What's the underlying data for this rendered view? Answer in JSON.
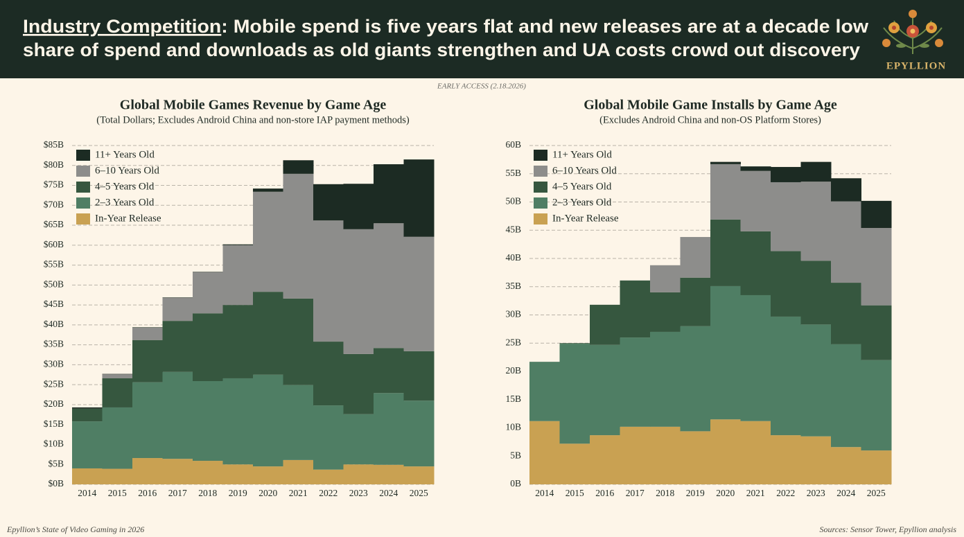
{
  "header": {
    "title_lead": "Industry Competition",
    "title_line1": ": Mobile spend is five years flat and new releases are at a decade low",
    "title_line2": "share of spend and downloads as old giants strengthen and UA costs crowd out discovery",
    "brand": "EPYLLION"
  },
  "note": "EARLY ACCESS (2.18.2026)",
  "footer": {
    "left": "Epyllion’s State of Video Gaming in 2026",
    "right": "Sources: Sensor Tower, Epyllion analysis"
  },
  "chart_data": [
    {
      "type": "stacked-step",
      "title": "Global Mobile Games Revenue by Game Age",
      "subtitle": "(Total Dollars; Excludes Android China and non-store IAP payment methods)",
      "categories": [
        "2014",
        "2015",
        "2016",
        "2017",
        "2018",
        "2019",
        "2020",
        "2021",
        "2022",
        "2023",
        "2024",
        "2025"
      ],
      "series": [
        {
          "name": "In-Year Release",
          "color": "#c9a152",
          "values": [
            4.0,
            3.9,
            6.6,
            6.4,
            5.9,
            5.0,
            4.5,
            6.1,
            3.7,
            5.0,
            4.9,
            4.5
          ]
        },
        {
          "name": "2–3 Years Old",
          "color": "#4f7e64",
          "values": [
            11.8,
            15.4,
            19.0,
            21.8,
            20.0,
            21.6,
            23.0,
            18.8,
            16.1,
            12.6,
            18.0,
            16.5
          ]
        },
        {
          "name": "4–5 Years Old",
          "color": "#36573f",
          "values": [
            3.2,
            7.3,
            10.6,
            12.8,
            17.0,
            18.4,
            20.8,
            21.7,
            16.0,
            15.1,
            11.3,
            12.4
          ]
        },
        {
          "name": "6–10 Years Old",
          "color": "#8d8d8b",
          "values": [
            0,
            1.0,
            3.1,
            5.8,
            10.3,
            15.0,
            25.1,
            31.3,
            30.4,
            31.3,
            31.3,
            28.7
          ]
        },
        {
          "name": "11+ Years Old",
          "color": "#1c2b23",
          "values": [
            0.3,
            0.1,
            0.1,
            0.1,
            0.1,
            0.2,
            0.8,
            3.4,
            9.1,
            11.4,
            14.8,
            19.4
          ]
        }
      ],
      "ylim": [
        0,
        85
      ],
      "yticks": [
        {
          "value": 0,
          "label": "$0B"
        },
        {
          "value": 5,
          "label": "$5B"
        },
        {
          "value": 10,
          "label": "$10B"
        },
        {
          "value": 15,
          "label": "$15B"
        },
        {
          "value": 20,
          "label": "$20B"
        },
        {
          "value": 25,
          "label": "$25B"
        },
        {
          "value": 30,
          "label": "$30B"
        },
        {
          "value": 35,
          "label": "$35B"
        },
        {
          "value": 40,
          "label": "$40B"
        },
        {
          "value": 45,
          "label": "$45B"
        },
        {
          "value": 50,
          "label": "$50B"
        },
        {
          "value": 55,
          "label": "$55B"
        },
        {
          "value": 60,
          "label": "$60B"
        },
        {
          "value": 65,
          "label": "$65B"
        },
        {
          "value": 70,
          "label": "$70B"
        },
        {
          "value": 75,
          "label": "$75B"
        },
        {
          "value": 80,
          "label": "$80B"
        },
        {
          "value": 85,
          "label": "$85B"
        }
      ],
      "grid": true,
      "legend": "top-left"
    },
    {
      "type": "stacked-step",
      "title": "Global Mobile Game Installs by Game Age",
      "subtitle": "(Excludes Android China and non-OS Platform Stores)",
      "categories": [
        "2014",
        "2015",
        "2016",
        "2017",
        "2018",
        "2019",
        "2020",
        "2021",
        "2022",
        "2023",
        "2024",
        "2025"
      ],
      "series": [
        {
          "name": "In-Year Release",
          "color": "#c9a152",
          "values": [
            11.2,
            7.2,
            8.7,
            10.2,
            10.2,
            9.4,
            11.5,
            11.2,
            8.7,
            8.5,
            6.6,
            6.0
          ]
        },
        {
          "name": "2–3 Years Old",
          "color": "#4f7e64",
          "values": [
            10.5,
            17.7,
            16.0,
            15.8,
            16.8,
            18.6,
            23.6,
            22.3,
            21.0,
            19.8,
            18.2,
            16.0
          ]
        },
        {
          "name": "4–5 Years Old",
          "color": "#36573f",
          "values": [
            0,
            0.1,
            7.1,
            10.1,
            7.0,
            8.6,
            11.8,
            11.3,
            11.6,
            11.3,
            10.9,
            9.7
          ]
        },
        {
          "name": "6–10 Years Old",
          "color": "#8d8d8b",
          "values": [
            0,
            0,
            0,
            0,
            4.8,
            7.2,
            9.8,
            10.7,
            12.2,
            14.0,
            14.4,
            13.7
          ]
        },
        {
          "name": "11+ Years Old",
          "color": "#1c2b23",
          "values": [
            0,
            0,
            0,
            0,
            0,
            0,
            0.4,
            0.8,
            2.7,
            3.5,
            4.1,
            4.8
          ]
        }
      ],
      "ylim": [
        0,
        60
      ],
      "yticks": [
        {
          "value": 0,
          "label": "0B"
        },
        {
          "value": 5,
          "label": "5B"
        },
        {
          "value": 10,
          "label": "10B"
        },
        {
          "value": 15,
          "label": "15B"
        },
        {
          "value": 20,
          "label": "20B"
        },
        {
          "value": 25,
          "label": "25B"
        },
        {
          "value": 30,
          "label": "30B"
        },
        {
          "value": 35,
          "label": "35B"
        },
        {
          "value": 40,
          "label": "40B"
        },
        {
          "value": 45,
          "label": "45B"
        },
        {
          "value": 50,
          "label": "50B"
        },
        {
          "value": 55,
          "label": "55B"
        },
        {
          "value": 60,
          "label": "60B"
        }
      ],
      "grid": true,
      "legend": "top-left"
    }
  ]
}
